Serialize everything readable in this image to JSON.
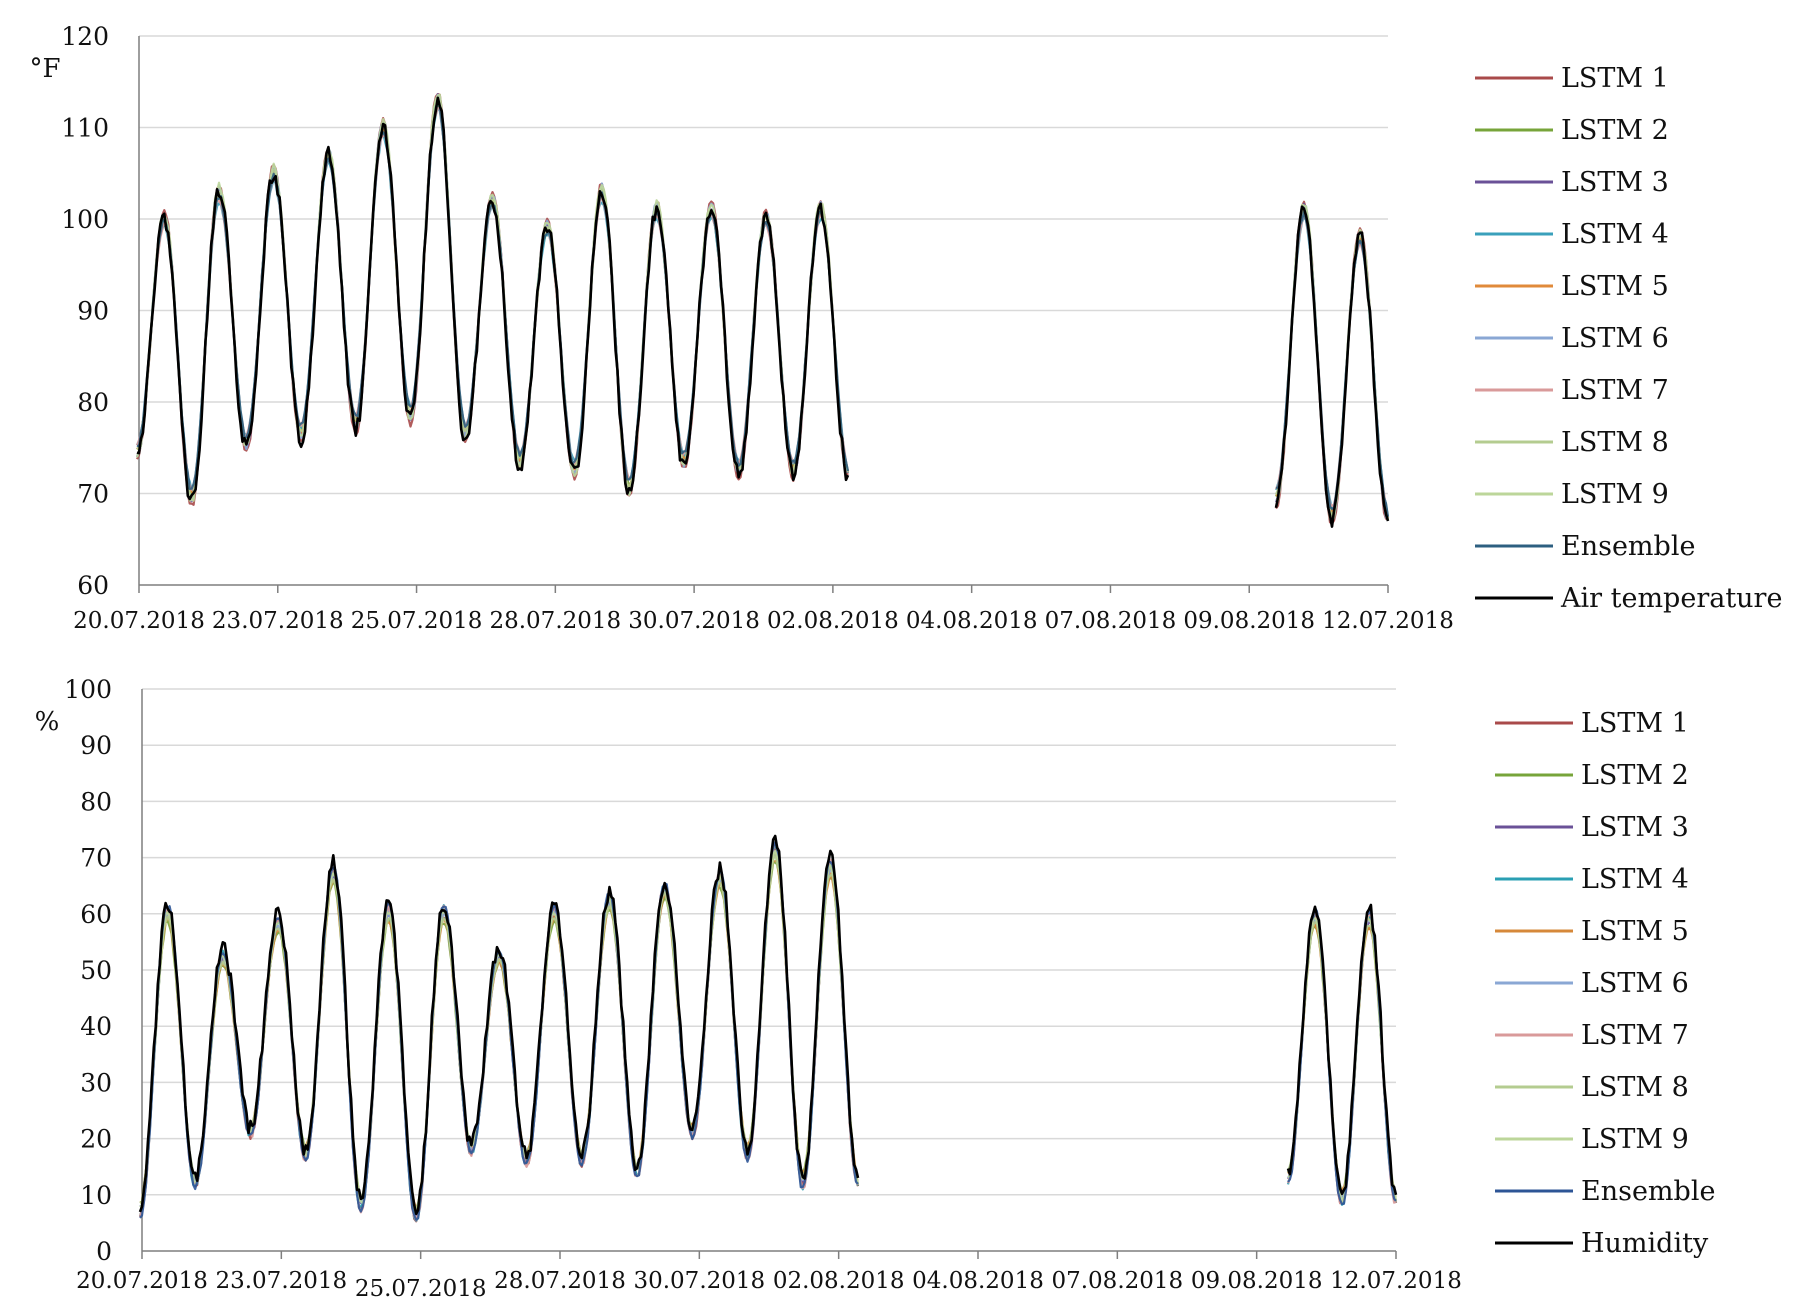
{
  "chart_data": [
    {
      "type": "line",
      "ylabel": "°F",
      "ylim": [
        60,
        120
      ],
      "yticks": [
        60,
        70,
        80,
        90,
        100,
        110,
        120
      ],
      "categories": [
        "20.07.2018",
        "23.07.2018",
        "25.07.2018",
        "28.07.2018",
        "30.07.2018",
        "02.08.2018",
        "04.08.2018",
        "07.08.2018",
        "09.08.2018",
        "12.07.2018"
      ],
      "grid": "horizontal",
      "legend": "right",
      "cycles_before_gap": [
        {
          "peak": 100,
          "trough": 74
        },
        {
          "peak": 103,
          "trough": 69
        },
        {
          "peak": 105,
          "trough": 75
        },
        {
          "peak": 107,
          "trough": 76
        },
        {
          "peak": 110,
          "trough": 77
        },
        {
          "peak": 113,
          "trough": 78
        },
        {
          "peak": 102,
          "trough": 76
        },
        {
          "peak": 99,
          "trough": 73
        },
        {
          "peak": 103,
          "trough": 72
        },
        {
          "peak": 101,
          "trough": 70
        },
        {
          "peak": 101,
          "trough": 73
        },
        {
          "peak": 100,
          "trough": 72
        },
        {
          "peak": 101,
          "trough": 72
        }
      ],
      "cycles_after_gap": [
        {
          "peak": 101,
          "trough": 69
        },
        {
          "peak": 98,
          "trough": 67
        }
      ],
      "series": [
        {
          "name": "LSTM 1",
          "color": "#a94a4a"
        },
        {
          "name": "LSTM 2",
          "color": "#77a43a"
        },
        {
          "name": "LSTM 3",
          "color": "#6a5197"
        },
        {
          "name": "LSTM 4",
          "color": "#3aa0bb"
        },
        {
          "name": "LSTM 5",
          "color": "#e08a3a"
        },
        {
          "name": "LSTM 6",
          "color": "#8aa7d4"
        },
        {
          "name": "LSTM 7",
          "color": "#d99a9a"
        },
        {
          "name": "LSTM 8",
          "color": "#b4cc90"
        },
        {
          "name": "LSTM 9",
          "color": "#bcd69a"
        },
        {
          "name": "Ensemble",
          "color": "#2d5f80"
        },
        {
          "name": "Air temperature",
          "color": "#000000"
        }
      ]
    },
    {
      "type": "line",
      "ylabel": "%",
      "ylim": [
        0,
        100
      ],
      "yticks": [
        0,
        10,
        20,
        30,
        40,
        50,
        60,
        70,
        80,
        90,
        100
      ],
      "categories": [
        "20.07.2018",
        "23.07.2018",
        "25.07.2018",
        "28.07.2018",
        "30.07.2018",
        "02.08.2018",
        "04.08.2018",
        "07.08.2018",
        "09.08.2018",
        "12.07.2018"
      ],
      "grid": "horizontal",
      "legend": "right",
      "cycles_before_gap": [
        {
          "peak": 62,
          "trough": 8
        },
        {
          "peak": 54,
          "trough": 13
        },
        {
          "peak": 60,
          "trough": 22
        },
        {
          "peak": 69,
          "trough": 18
        },
        {
          "peak": 62,
          "trough": 9
        },
        {
          "peak": 62,
          "trough": 7
        },
        {
          "peak": 54,
          "trough": 19
        },
        {
          "peak": 62,
          "trough": 17
        },
        {
          "peak": 64,
          "trough": 17
        },
        {
          "peak": 66,
          "trough": 15
        },
        {
          "peak": 68,
          "trough": 22
        },
        {
          "peak": 73,
          "trough": 18
        },
        {
          "peak": 70,
          "trough": 13
        }
      ],
      "cycles_after_gap": [
        {
          "peak": 61,
          "trough": 14
        },
        {
          "peak": 61,
          "trough": 10
        }
      ],
      "series": [
        {
          "name": "LSTM 1",
          "color": "#a94a4a"
        },
        {
          "name": "LSTM 2",
          "color": "#77a43a"
        },
        {
          "name": "LSTM 3",
          "color": "#6a5197"
        },
        {
          "name": "LSTM 4",
          "color": "#2a9fb3"
        },
        {
          "name": "LSTM 5",
          "color": "#d6883a"
        },
        {
          "name": "LSTM 6",
          "color": "#8aa7d4"
        },
        {
          "name": "LSTM 7",
          "color": "#d99a9a"
        },
        {
          "name": "LSTM 8",
          "color": "#b4cc90"
        },
        {
          "name": "LSTM 9",
          "color": "#bcd69a"
        },
        {
          "name": "Ensemble",
          "color": "#2d5596"
        },
        {
          "name": "Humidity",
          "color": "#000000"
        }
      ]
    }
  ]
}
